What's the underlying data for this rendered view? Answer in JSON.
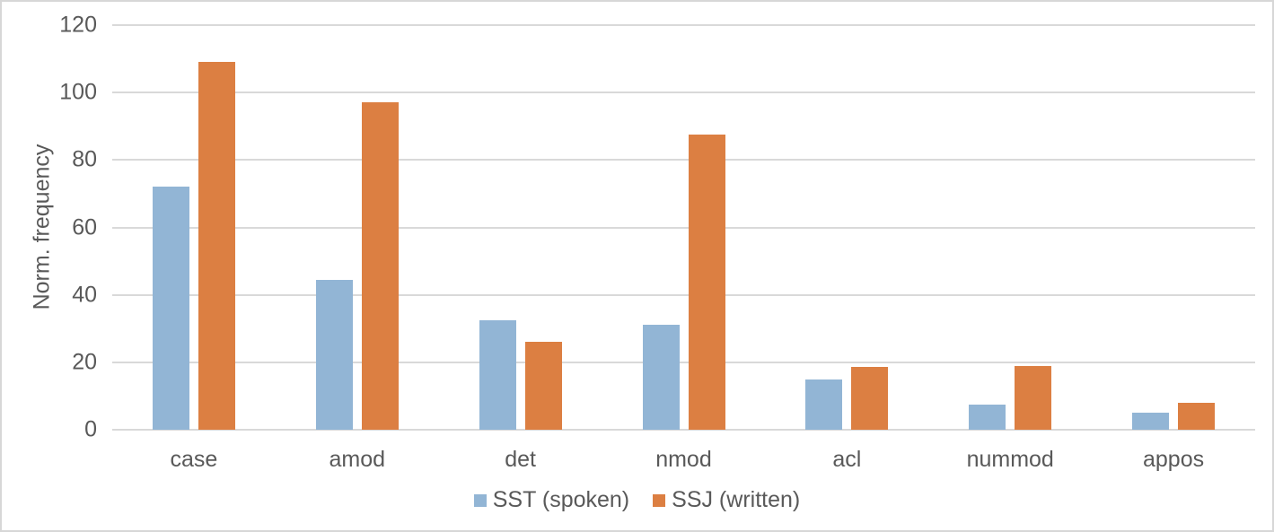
{
  "chart_data": {
    "type": "bar",
    "title": "",
    "categories": [
      "case",
      "amod",
      "det",
      "nmod",
      "acl",
      "nummod",
      "appos"
    ],
    "series": [
      {
        "name": "SST (spoken)",
        "color": "#92B5D5",
        "values": [
          72,
          44.5,
          32.5,
          31,
          15,
          7.5,
          5
        ]
      },
      {
        "name": "SSJ (written)",
        "color": "#DC7F42",
        "values": [
          109,
          97,
          26,
          87.5,
          18.5,
          19,
          8
        ]
      }
    ],
    "xlabel": "",
    "ylabel": "Norm. frequency",
    "ylim": [
      0,
      120
    ],
    "yticks": [
      0,
      20,
      40,
      60,
      80,
      100,
      120
    ],
    "grid": true,
    "legend_position": "bottom"
  },
  "colors": {
    "gridline": "#D9D9D9",
    "axis_line": "#D9D9D9",
    "text": "#595959",
    "frame_border": "#D7D7D7",
    "background": "#FFFFFF"
  }
}
